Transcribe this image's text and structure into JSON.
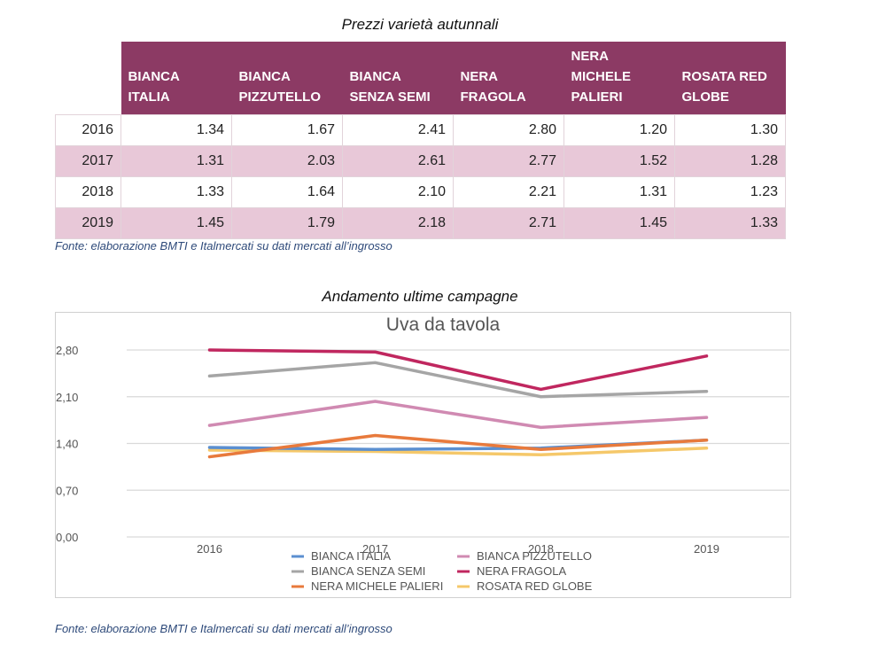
{
  "table_section": {
    "title": "Prezzi varietà autunnali",
    "columns": [
      "BIANCA ITALIA",
      "BIANCA PIZZUTELLO",
      "BIANCA SENZA SEMI",
      "NERA FRAGOLA",
      "NERA MICHELE PALIERI",
      "ROSATA RED GLOBE"
    ],
    "column_lines": [
      [
        "BIANCA ITALIA"
      ],
      [
        "BIANCA",
        "PIZZUTELLO"
      ],
      [
        "BIANCA",
        "SENZA SEMI"
      ],
      [
        "NERA",
        "FRAGOLA"
      ],
      [
        "NERA",
        "MICHELE",
        "PALIERI"
      ],
      [
        "ROSATA RED",
        "GLOBE"
      ]
    ],
    "rows": [
      {
        "year": "2016",
        "values": [
          "1.34",
          "1.67",
          "2.41",
          "2.80",
          "1.20",
          "1.30"
        ]
      },
      {
        "year": "2017",
        "values": [
          "1.31",
          "2.03",
          "2.61",
          "2.77",
          "1.52",
          "1.28"
        ]
      },
      {
        "year": "2018",
        "values": [
          "1.33",
          "1.64",
          "2.10",
          "2.21",
          "1.31",
          "1.23"
        ]
      },
      {
        "year": "2019",
        "values": [
          "1.45",
          "1.79",
          "2.18",
          "2.71",
          "1.45",
          "1.33"
        ]
      }
    ],
    "header_color": "#8c3a64",
    "alt_row_color": "#e8c8d8",
    "source": "Fonte: elaborazione BMTI e Italmercati su dati mercati all’ingrosso"
  },
  "chart_section": {
    "caption": "Andamento ultime campagne",
    "source": "Fonte: elaborazione BMTI e Italmercati su dati mercati all’ingrosso"
  },
  "chart_data": {
    "type": "line",
    "title": "Uva da tavola",
    "xlabel": "",
    "ylabel": "",
    "categories": [
      "2016",
      "2017",
      "2018",
      "2019"
    ],
    "ylim": [
      0,
      2.8
    ],
    "yticks": [
      0,
      0.7,
      1.4,
      2.1,
      2.8
    ],
    "ytick_labels": [
      "0,00",
      "0,70",
      "1,40",
      "2,10",
      "2,80"
    ],
    "grid": true,
    "legend_position": "bottom",
    "series": [
      {
        "name": "BIANCA ITALIA",
        "values": [
          1.34,
          1.31,
          1.33,
          1.45
        ],
        "color": "#5b8fd0"
      },
      {
        "name": "BIANCA PIZZUTELLO",
        "values": [
          1.67,
          2.03,
          1.64,
          1.79
        ],
        "color": "#d08ab2"
      },
      {
        "name": "BIANCA SENZA SEMI",
        "values": [
          2.41,
          2.61,
          2.1,
          2.18
        ],
        "color": "#a5a5a5"
      },
      {
        "name": "NERA FRAGOLA",
        "values": [
          2.8,
          2.77,
          2.21,
          2.71
        ],
        "color": "#c0275f"
      },
      {
        "name": "NERA MICHELE PALIERI",
        "values": [
          1.2,
          1.52,
          1.31,
          1.45
        ],
        "color": "#e87a3c"
      },
      {
        "name": "ROSATA RED GLOBE",
        "values": [
          1.3,
          1.28,
          1.23,
          1.33
        ],
        "color": "#f5c86a"
      }
    ]
  }
}
